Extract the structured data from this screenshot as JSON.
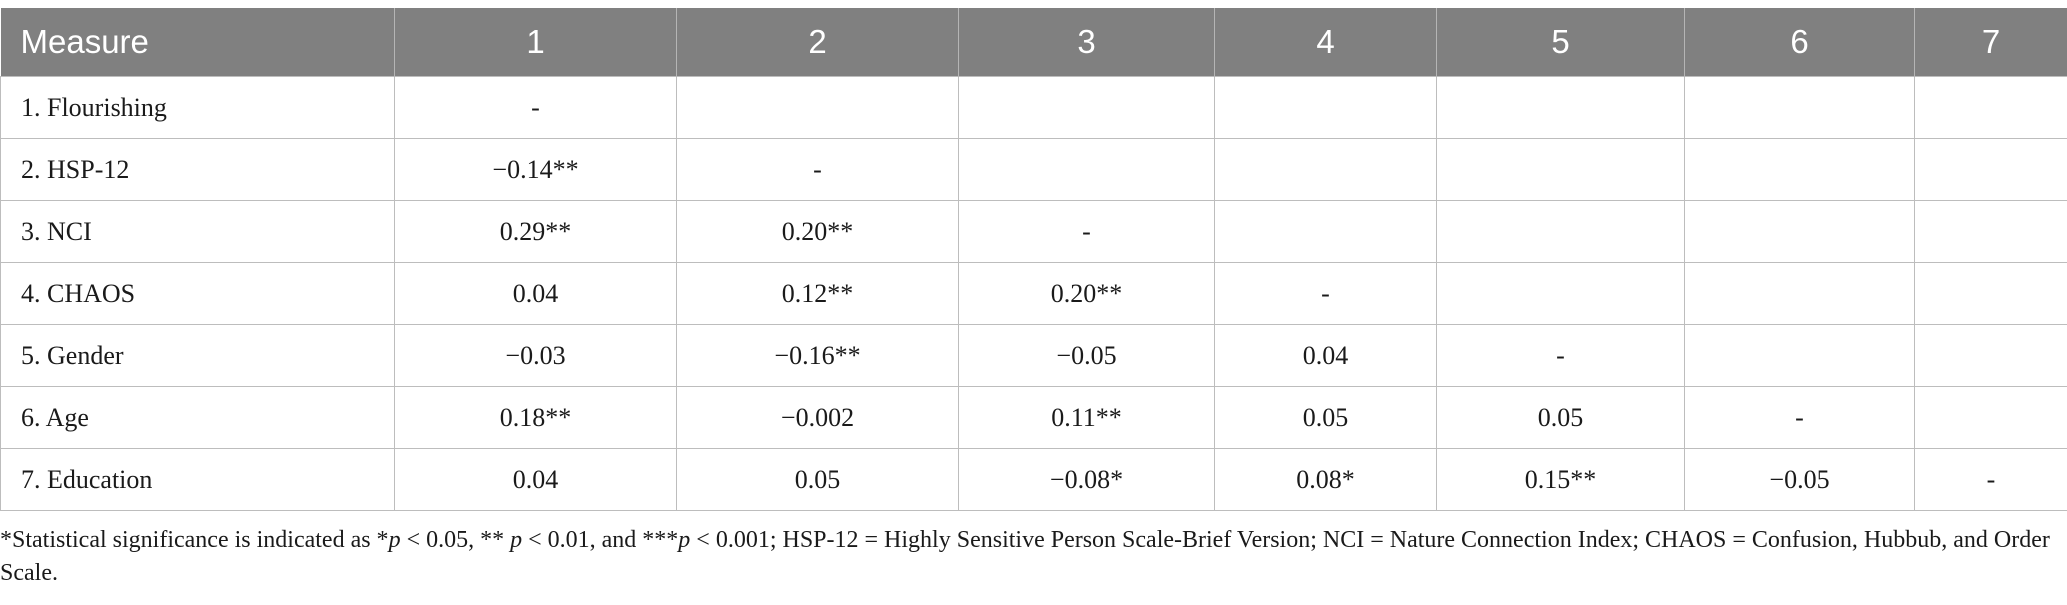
{
  "table": {
    "header": [
      "Measure",
      "1",
      "2",
      "3",
      "4",
      "5",
      "6",
      "7"
    ],
    "rows": [
      [
        "1. Flourishing",
        "-",
        "",
        "",
        "",
        "",
        "",
        ""
      ],
      [
        "2. HSP-12",
        "−0.14**",
        "-",
        "",
        "",
        "",
        "",
        ""
      ],
      [
        "3. NCI",
        "0.29**",
        "0.20**",
        "-",
        "",
        "",
        "",
        ""
      ],
      [
        "4. CHAOS",
        "0.04",
        "0.12**",
        "0.20**",
        "-",
        "",
        "",
        ""
      ],
      [
        "5. Gender",
        "−0.03",
        "−0.16**",
        "−0.05",
        "0.04",
        "-",
        "",
        ""
      ],
      [
        "6. Age",
        "0.18**",
        "−0.002",
        "0.11**",
        "0.05",
        "0.05",
        "-",
        ""
      ],
      [
        "7. Education",
        "0.04",
        "0.05",
        "−0.08*",
        "0.08*",
        "0.15**",
        "−0.05",
        "-"
      ]
    ]
  },
  "footnote": {
    "parts": [
      "*Statistical significance is indicated as *",
      "p",
      " < 0.05, ** ",
      "p",
      " < 0.01, and ***",
      "p",
      " < 0.001; HSP-12 = Highly Sensitive Person Scale-Brief Version; NCI = Nature Connection Index; CHAOS = Confusion, Hubbub, and Order Scale."
    ]
  }
}
